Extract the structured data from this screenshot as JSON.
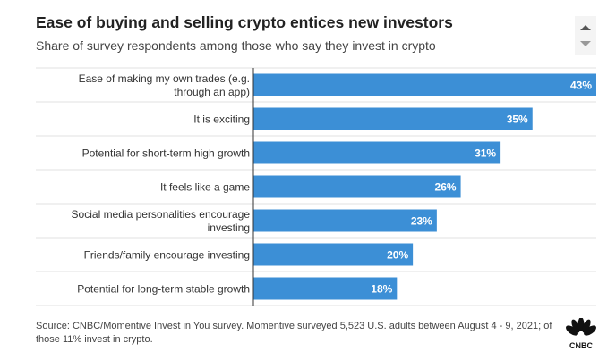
{
  "title": "Ease of buying and selling crypto entices new investors",
  "subtitle": "Share of survey respondents among those who say they invest in crypto",
  "source": "Source: CNBC/Momentive Invest in You survey. Momentive surveyed 5,523 U.S. adults between August 4 - 9, 2021; of those 11% invest in crypto.",
  "logo_text": "CNBC",
  "colors": {
    "bar": "#3c8fd6",
    "bar_label": "#ffffff",
    "grid": "#e2e2e2",
    "axis": "#333333"
  },
  "icons": {
    "scroll_up": "triangle-up-icon",
    "scroll_down": "triangle-down-icon",
    "logo": "peacock-icon"
  },
  "chart_data": {
    "type": "bar",
    "orientation": "horizontal",
    "categories": [
      [
        "Ease of making my own trades (e.g.",
        "through an app)"
      ],
      [
        "It is exciting"
      ],
      [
        "Potential for short-term high growth"
      ],
      [
        "It feels like a game"
      ],
      [
        "Social media personalities encourage",
        "investing"
      ],
      [
        "Friends/family encourage investing"
      ],
      [
        "Potential for long-term stable growth"
      ]
    ],
    "values": [
      43,
      35,
      31,
      26,
      23,
      20,
      18
    ],
    "value_labels": [
      "43%",
      "35%",
      "31%",
      "26%",
      "23%",
      "20%",
      "18%"
    ],
    "xlim": [
      0,
      43
    ],
    "grid": "horizontal separators between categories",
    "legend": "none"
  }
}
